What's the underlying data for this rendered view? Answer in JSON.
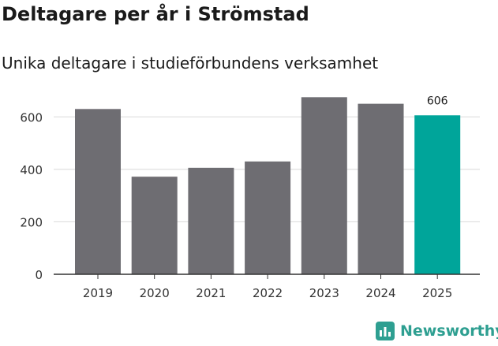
{
  "header": {
    "title": "Deltagare per år i Strömstad",
    "subtitle": "Unika deltagare i studieförbundens verksamhet"
  },
  "brand": {
    "name": "Newsworthy",
    "color": "#2e9f91"
  },
  "colors": {
    "bar": "#6e6d72",
    "highlight": "#00a59a",
    "grid": "#d9d9d9",
    "axis": "#333333"
  },
  "chart_data": {
    "type": "bar",
    "title": "Deltagare per år i Strömstad",
    "subtitle": "Unika deltagare i studieförbundens verksamhet",
    "categories": [
      "2019",
      "2020",
      "2021",
      "2022",
      "2023",
      "2024",
      "2025"
    ],
    "values": [
      630,
      372,
      406,
      430,
      675,
      650,
      606
    ],
    "highlight_index": 6,
    "data_labels": [
      {
        "index": 6,
        "text": "606"
      }
    ],
    "xlabel": "",
    "ylabel": "",
    "ylim": [
      0,
      700
    ],
    "yticks": [
      0,
      200,
      400,
      600
    ],
    "grid": true
  }
}
